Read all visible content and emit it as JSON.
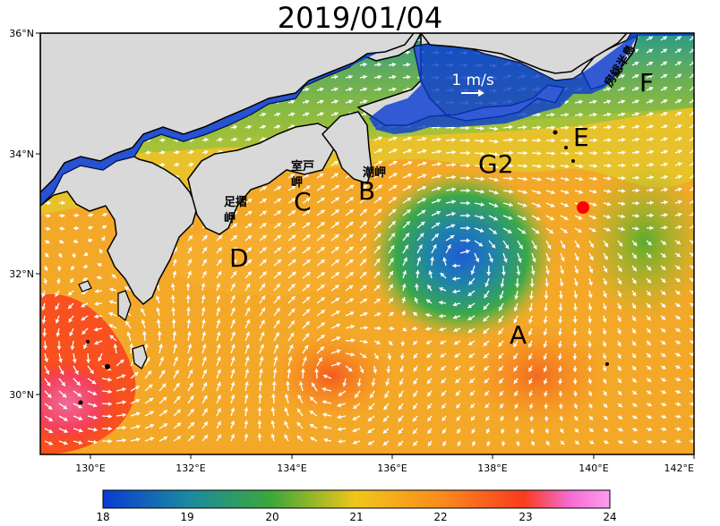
{
  "title": "2019/01/04",
  "axes": {
    "lat_labels": [
      "36°N",
      "34°N",
      "32°N",
      "30°N"
    ],
    "lon_labels": [
      "130°E",
      "132°E",
      "134°E",
      "136°E",
      "138°E",
      "140°E",
      "142°E"
    ],
    "lat_range": [
      29,
      36
    ],
    "lon_range": [
      129,
      142
    ]
  },
  "colorbar": {
    "ticks": [
      "18",
      "19",
      "20",
      "21",
      "22",
      "23",
      "24"
    ],
    "range": [
      18,
      24
    ],
    "colors": [
      "#0a3cd2",
      "#1a8aa0",
      "#3aa83a",
      "#f2c61a",
      "#f98a1e",
      "#f83c1e",
      "#f56bd0",
      "#ff9cf0"
    ]
  },
  "scale_vector": "1 m/s",
  "letters": {
    "A": "A",
    "B": "B",
    "C": "C",
    "D": "D",
    "E": "E",
    "F": "F",
    "G2": "G2"
  },
  "place_names": {
    "boso": "房総半島",
    "muroto": "室戸岬",
    "shiono": "潮岬",
    "ashizuri": "足摺岬"
  },
  "land_color": "#d9d9d9",
  "marker_color": "#ff0000"
}
